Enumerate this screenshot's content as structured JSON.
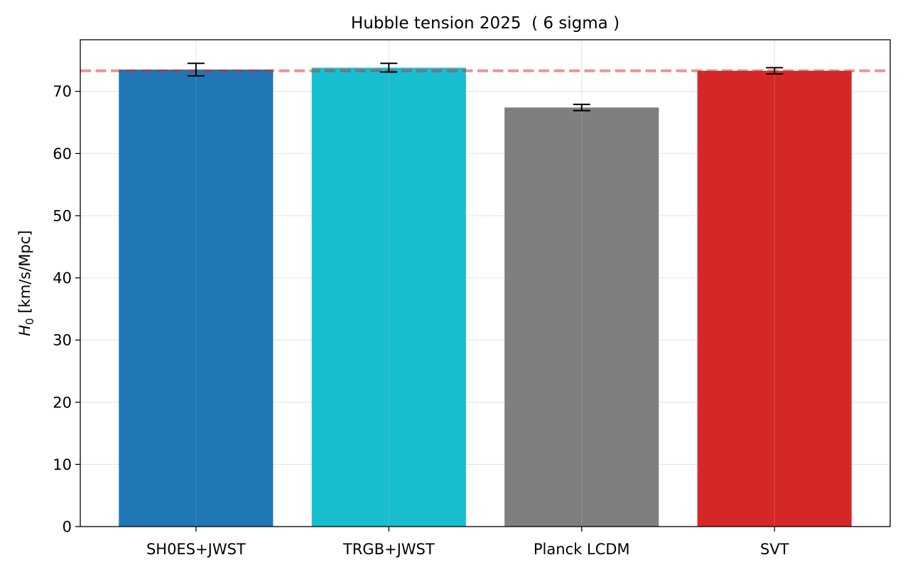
{
  "chart_data": {
    "type": "bar",
    "title": "Hubble tension 2025  ( 6 sigma )",
    "xlabel": "",
    "ylabel": "[km/s/Mpc]",
    "ylabel_symbol": "H",
    "ylabel_subscript": "0",
    "categories": [
      "SH0ES+JWST",
      "TRGB+JWST",
      "Planck LCDM",
      "SVT"
    ],
    "values": [
      73.5,
      73.8,
      67.4,
      73.3
    ],
    "errors": [
      1.0,
      0.7,
      0.5,
      0.5
    ],
    "bar_colors": [
      "#1f77b4",
      "#17becf",
      "#7f7f7f",
      "#d62728"
    ],
    "reference_line": {
      "value": 73.3,
      "color": "#d62728",
      "style": "dashed"
    },
    "ylim": [
      0,
      78.3
    ],
    "yticks": [
      0,
      10,
      20,
      30,
      40,
      50,
      60,
      70
    ],
    "grid": true
  }
}
